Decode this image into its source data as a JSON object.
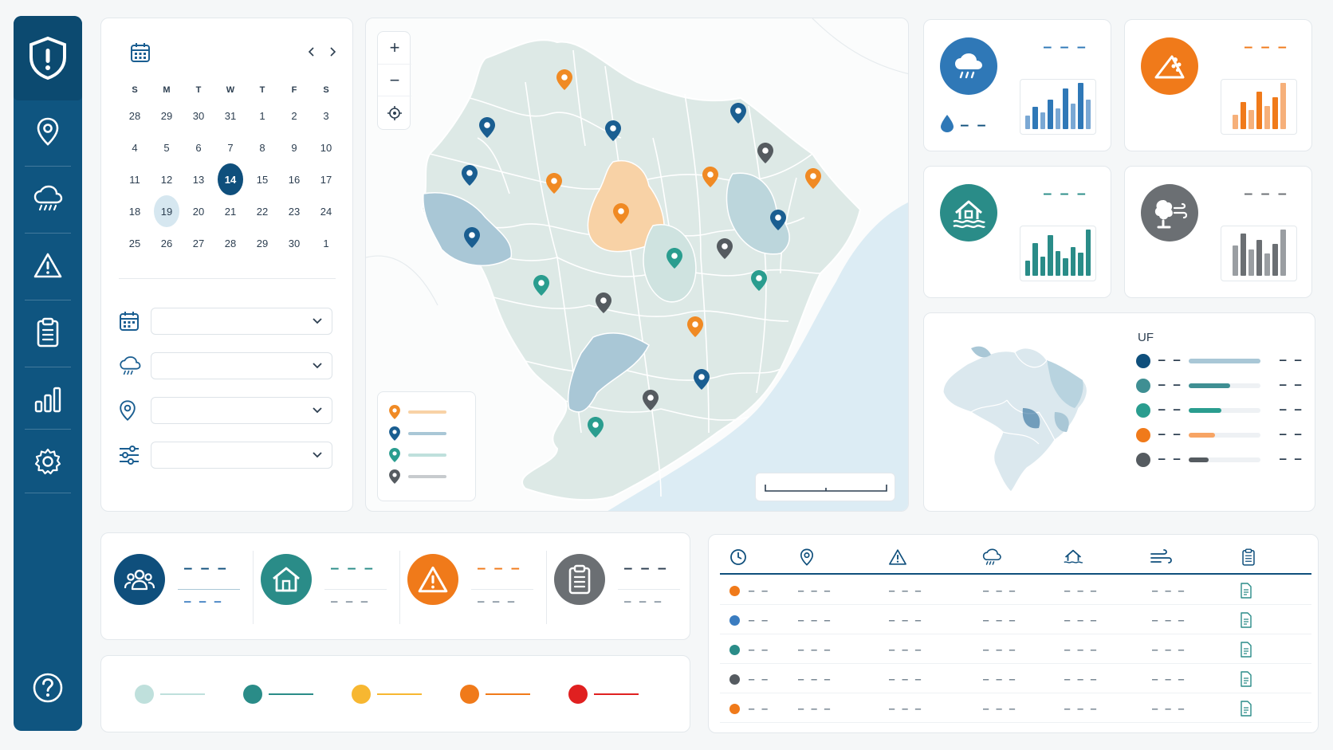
{
  "calendar": {
    "weekdays": [
      "S",
      "M",
      "T",
      "W",
      "T",
      "F",
      "S"
    ],
    "days": [
      {
        "d": "28",
        "m": true
      },
      {
        "d": "29",
        "m": true
      },
      {
        "d": "30",
        "m": true
      },
      {
        "d": "31",
        "m": true
      },
      {
        "d": "1"
      },
      {
        "d": "2"
      },
      {
        "d": "3"
      },
      {
        "d": "4"
      },
      {
        "d": "5"
      },
      {
        "d": "6"
      },
      {
        "d": "7"
      },
      {
        "d": "8"
      },
      {
        "d": "9"
      },
      {
        "d": "10"
      },
      {
        "d": "11"
      },
      {
        "d": "12"
      },
      {
        "d": "13"
      },
      {
        "d": "14",
        "sel": true
      },
      {
        "d": "15"
      },
      {
        "d": "16"
      },
      {
        "d": "17"
      },
      {
        "d": "18"
      },
      {
        "d": "19",
        "hl": true
      },
      {
        "d": "20"
      },
      {
        "d": "21"
      },
      {
        "d": "22"
      },
      {
        "d": "23"
      },
      {
        "d": "24"
      },
      {
        "d": "25"
      },
      {
        "d": "26"
      },
      {
        "d": "27"
      },
      {
        "d": "28"
      },
      {
        "d": "29"
      },
      {
        "d": "30"
      },
      {
        "d": "1",
        "m": true
      }
    ],
    "prev_icon": "chevron-left-icon",
    "next_icon": "chevron-right-icon"
  },
  "filters": [
    {
      "icon": "calendar-icon",
      "value": ""
    },
    {
      "icon": "cloud-rain-icon",
      "value": ""
    },
    {
      "icon": "location-pin-icon",
      "value": ""
    },
    {
      "icon": "sliders-icon",
      "value": ""
    }
  ],
  "sidebar": {
    "items": [
      "location-pin-icon",
      "cloud-rain-icon",
      "warning-icon",
      "clipboard-icon",
      "bar-chart-icon",
      "gear-icon"
    ],
    "help_icon": "help-circle-icon"
  },
  "map": {
    "zoom_in": "+",
    "zoom_out": "−",
    "locate_icon": "crosshair-icon",
    "legend_colors": [
      "#f08a24",
      "#1a5e91",
      "#2a9d8f",
      "#555b60"
    ]
  },
  "hazard_cards": [
    {
      "icon": "rain-icon",
      "color": "#2f78b7",
      "value": "– – –",
      "sub": "– –",
      "bars": [
        18,
        30,
        22,
        40,
        28,
        55,
        34,
        62,
        40
      ]
    },
    {
      "icon": "landslide-icon",
      "color": "#f07a1a",
      "value": "– – –",
      "bars": [
        14,
        26,
        18,
        36,
        22,
        30,
        44
      ]
    },
    {
      "icon": "flood-house-icon",
      "color": "#2a8c88",
      "value": "– – –",
      "bars": [
        16,
        34,
        20,
        42,
        26,
        18,
        30,
        24,
        48
      ]
    },
    {
      "icon": "wind-tree-icon",
      "color": "#6b6f73",
      "value": "– – –",
      "bars": [
        30,
        42,
        26,
        36,
        22,
        32,
        46
      ]
    }
  ],
  "uf_panel": {
    "title": "UF",
    "rows": [
      {
        "color": "#0f4f7c",
        "pct": 1.0
      },
      {
        "color": "#3f8f93",
        "pct": 0.58
      },
      {
        "color": "#2a9d8f",
        "pct": 0.45
      },
      {
        "color": "#f07a1a",
        "pct": 0.37
      },
      {
        "color": "#555b60",
        "pct": 0.28
      }
    ]
  },
  "summary": [
    {
      "icon": "people-icon",
      "color": "#0f4f7c",
      "main": "– – –",
      "sub": "– – –"
    },
    {
      "icon": "house-icon",
      "color": "#2a8c88",
      "main": "– – –",
      "sub": "– – –"
    },
    {
      "icon": "warning-icon",
      "color": "#f07a1a",
      "main": "– – –",
      "sub": "– – –"
    },
    {
      "icon": "clipboard-icon",
      "color": "#6b6f73",
      "main": "– – –",
      "sub": "– – –"
    }
  ],
  "levels": [
    "#bfe0dc",
    "#2a8c88",
    "#f7b731",
    "#f07a1a",
    "#e02020"
  ],
  "table": {
    "header_icons": [
      "clock-icon",
      "location-pin-icon",
      "warning-icon",
      "cloud-rain-icon",
      "flood-house-icon",
      "wind-icon",
      "clipboard-icon"
    ],
    "rows": [
      {
        "color": "#f07a1a",
        "cells": [
          "– –",
          "– – –",
          "– – –",
          "– – –",
          "– – –",
          "– – –"
        ]
      },
      {
        "color": "#3a7cc0",
        "cells": [
          "– –",
          "– – –",
          "– – –",
          "– – –",
          "– – –",
          "– – –"
        ]
      },
      {
        "color": "#2a8c88",
        "cells": [
          "– –",
          "– – –",
          "– – –",
          "– – –",
          "– – –",
          "– – –"
        ]
      },
      {
        "color": "#555b60",
        "cells": [
          "– –",
          "– – –",
          "– – –",
          "– – –",
          "– – –",
          "– – –"
        ]
      },
      {
        "color": "#f07a1a",
        "cells": [
          "– –",
          "– – –",
          "– – –",
          "– – –",
          "– – –",
          "– – –"
        ]
      }
    ]
  }
}
